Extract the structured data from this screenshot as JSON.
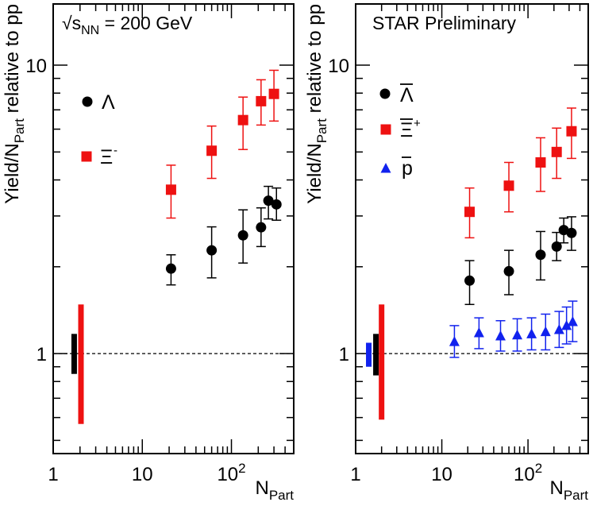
{
  "chart_data": [
    {
      "type": "scatter",
      "title": "",
      "annotation": "√sNN = 200 GeV",
      "annotation_parts": {
        "root": "√",
        "s": "s",
        "sub": "NN",
        "rest": " = 200 GeV"
      },
      "ylabel_parts": {
        "main": "Yield/N",
        "sub": "Part",
        "rest": " relative to pp"
      },
      "xlabel_parts": {
        "main": "N",
        "sub": "Part"
      },
      "xscale": "log",
      "yscale": "log",
      "xlim": [
        1,
        500
      ],
      "ylim": [
        0.45,
        16.3
      ],
      "xticks": [
        {
          "value": 1,
          "label": "1"
        },
        {
          "value": 10,
          "label": "10"
        },
        {
          "value": 100,
          "label": "10",
          "sup": "2"
        }
      ],
      "yticks": [
        {
          "value": 1,
          "label": "1"
        },
        {
          "value": 10,
          "label": "10"
        }
      ],
      "reference_line": 1,
      "legend_position": "left",
      "series": [
        {
          "name": "Λ",
          "marker": "circle",
          "color": "#000000",
          "points": [
            {
              "x": 21,
              "y": 1.97,
              "lo": 1.73,
              "hi": 2.2
            },
            {
              "x": 60,
              "y": 2.28,
              "lo": 1.83,
              "hi": 2.75
            },
            {
              "x": 135,
              "y": 2.57,
              "lo": 2.06,
              "hi": 3.15
            },
            {
              "x": 215,
              "y": 2.74,
              "lo": 2.35,
              "hi": 3.2
            },
            {
              "x": 260,
              "y": 3.39,
              "lo": 2.93,
              "hi": 3.8
            },
            {
              "x": 320,
              "y": 3.29,
              "lo": 2.9,
              "hi": 3.75
            }
          ]
        },
        {
          "name": "Ξ",
          "sup": "-",
          "marker": "square",
          "color": "#ee1111",
          "points": [
            {
              "x": 21,
              "y": 3.7,
              "lo": 2.95,
              "hi": 4.5
            },
            {
              "x": 60,
              "y": 5.05,
              "lo": 4.05,
              "hi": 6.15
            },
            {
              "x": 135,
              "y": 6.45,
              "lo": 5.1,
              "hi": 7.75
            },
            {
              "x": 215,
              "y": 7.5,
              "lo": 6.2,
              "hi": 8.9
            },
            {
              "x": 300,
              "y": 7.95,
              "lo": 6.4,
              "hi": 9.6
            }
          ]
        }
      ],
      "systematic_bands": [
        {
          "color": "#000000",
          "x": 1.72,
          "lo": 0.85,
          "hi": 1.17
        },
        {
          "color": "#ee1111",
          "x": 2.05,
          "lo": 0.57,
          "hi": 1.48
        }
      ]
    },
    {
      "type": "scatter",
      "title": "",
      "annotation": "STAR Preliminary",
      "ylabel_parts": {
        "main": "Yield/N",
        "sub": "Part",
        "rest": " relative to pp"
      },
      "xlabel_parts": {
        "main": "N",
        "sub": "Part"
      },
      "xscale": "log",
      "yscale": "log",
      "xlim": [
        1,
        500
      ],
      "ylim": [
        0.45,
        16.3
      ],
      "xticks": [
        {
          "value": 1,
          "label": "1"
        },
        {
          "value": 10,
          "label": "10"
        },
        {
          "value": 100,
          "label": "10",
          "sup": "2"
        }
      ],
      "yticks": [
        {
          "value": 1,
          "label": "1"
        },
        {
          "value": 10,
          "label": "10"
        }
      ],
      "reference_line": 1,
      "legend_position": "top-left",
      "series": [
        {
          "name": "Λ",
          "overbar": true,
          "marker": "circle",
          "color": "#000000",
          "points": [
            {
              "x": 21,
              "y": 1.79,
              "lo": 1.48,
              "hi": 2.1
            },
            {
              "x": 60,
              "y": 1.93,
              "lo": 1.6,
              "hi": 2.28
            },
            {
              "x": 140,
              "y": 2.2,
              "lo": 1.8,
              "hi": 2.65
            },
            {
              "x": 215,
              "y": 2.35,
              "lo": 2.1,
              "hi": 2.63
            },
            {
              "x": 260,
              "y": 2.68,
              "lo": 2.42,
              "hi": 2.95
            },
            {
              "x": 320,
              "y": 2.62,
              "lo": 2.28,
              "hi": 2.98
            }
          ]
        },
        {
          "name": "Ξ",
          "overbar": true,
          "sup": "+",
          "marker": "square",
          "color": "#ee1111",
          "points": [
            {
              "x": 21,
              "y": 3.1,
              "lo": 2.52,
              "hi": 3.75
            },
            {
              "x": 60,
              "y": 3.82,
              "lo": 3.1,
              "hi": 4.6
            },
            {
              "x": 140,
              "y": 4.6,
              "lo": 3.65,
              "hi": 5.6
            },
            {
              "x": 215,
              "y": 5.0,
              "lo": 4.05,
              "hi": 6.05
            },
            {
              "x": 320,
              "y": 5.9,
              "lo": 4.75,
              "hi": 7.1
            }
          ]
        },
        {
          "name": "p",
          "overbar": true,
          "marker": "triangle",
          "color": "#1122ee",
          "points": [
            {
              "x": 14,
              "y": 1.1,
              "lo": 0.97,
              "hi": 1.25
            },
            {
              "x": 27,
              "y": 1.18,
              "lo": 1.04,
              "hi": 1.33
            },
            {
              "x": 48,
              "y": 1.15,
              "lo": 1.02,
              "hi": 1.3
            },
            {
              "x": 75,
              "y": 1.16,
              "lo": 1.02,
              "hi": 1.32
            },
            {
              "x": 110,
              "y": 1.17,
              "lo": 1.03,
              "hi": 1.33
            },
            {
              "x": 160,
              "y": 1.19,
              "lo": 1.03,
              "hi": 1.37
            },
            {
              "x": 230,
              "y": 1.21,
              "lo": 1.05,
              "hi": 1.4
            },
            {
              "x": 280,
              "y": 1.25,
              "lo": 1.08,
              "hi": 1.45
            },
            {
              "x": 330,
              "y": 1.29,
              "lo": 1.1,
              "hi": 1.52
            }
          ]
        }
      ],
      "systematic_bands": [
        {
          "color": "#1122ee",
          "x": 1.42,
          "lo": 0.9,
          "hi": 1.09
        },
        {
          "color": "#000000",
          "x": 1.72,
          "lo": 0.84,
          "hi": 1.17
        },
        {
          "color": "#ee1111",
          "x": 2.0,
          "lo": 0.59,
          "hi": 1.48
        }
      ]
    }
  ]
}
